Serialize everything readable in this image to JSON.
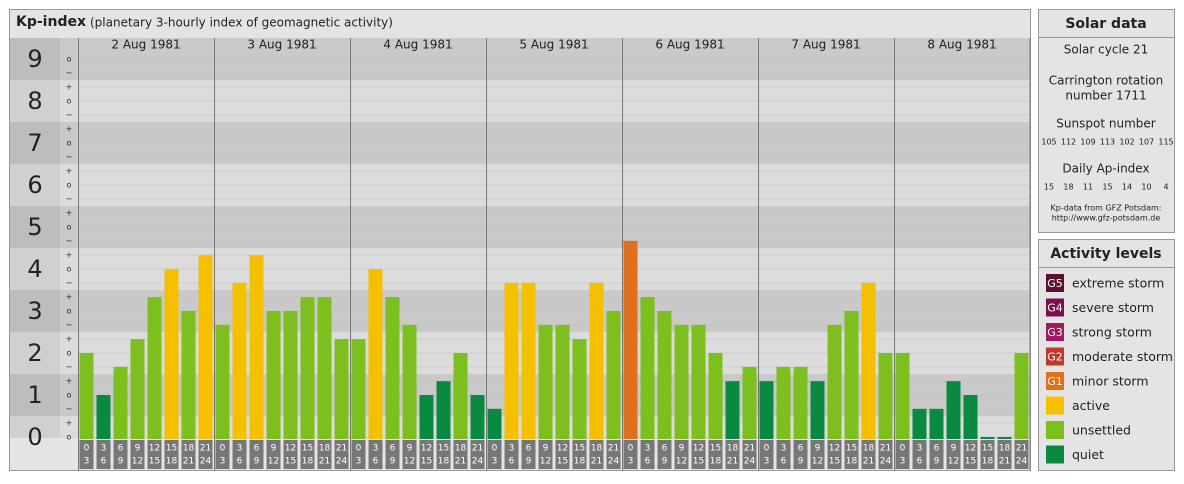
{
  "chart_data": {
    "type": "bar",
    "title": "Kp-index",
    "subtitle": "(planetary 3-hourly index of geomagnetic activity)",
    "ylim": [
      0,
      9.5
    ],
    "yticks": [
      0,
      1,
      2,
      3,
      4,
      5,
      6,
      7,
      8,
      9
    ],
    "sublevels": [
      "o",
      "+",
      "−"
    ],
    "hour_labels": [
      [
        "0",
        "3"
      ],
      [
        "3",
        "6"
      ],
      [
        "6",
        "9"
      ],
      [
        "9",
        "12"
      ],
      [
        "12",
        "15"
      ],
      [
        "15",
        "18"
      ],
      [
        "18",
        "21"
      ],
      [
        "21",
        "24"
      ]
    ],
    "days": [
      {
        "date": "2 Aug 1981",
        "values": [
          2,
          1,
          1.67,
          2.33,
          3.33,
          4,
          3,
          4.33
        ],
        "colors": [
          "#7cbf1e",
          "#0a8a40",
          "#7cbf1e",
          "#7cbf1e",
          "#7cbf1e",
          "#f5c000",
          "#7cbf1e",
          "#f5c000"
        ]
      },
      {
        "date": "3 Aug 1981",
        "values": [
          2.67,
          3.67,
          4.33,
          3,
          3,
          3.33,
          3.33,
          2.33
        ],
        "colors": [
          "#7cbf1e",
          "#f5c000",
          "#f5c000",
          "#7cbf1e",
          "#7cbf1e",
          "#7cbf1e",
          "#7cbf1e",
          "#7cbf1e"
        ]
      },
      {
        "date": "4 Aug 1981",
        "values": [
          2.33,
          4,
          3.33,
          2.67,
          1,
          1.33,
          2,
          1
        ],
        "colors": [
          "#7cbf1e",
          "#f5c000",
          "#7cbf1e",
          "#7cbf1e",
          "#0a8a40",
          "#0a8a40",
          "#7cbf1e",
          "#0a8a40"
        ]
      },
      {
        "date": "5 Aug 1981",
        "values": [
          0.67,
          3.67,
          3.67,
          2.67,
          2.67,
          2.33,
          3.67,
          3
        ],
        "colors": [
          "#0a8a40",
          "#f5c000",
          "#f5c000",
          "#7cbf1e",
          "#7cbf1e",
          "#7cbf1e",
          "#f5c000",
          "#7cbf1e"
        ]
      },
      {
        "date": "6 Aug 1981",
        "values": [
          4.67,
          3.33,
          3,
          2.67,
          2.67,
          2,
          1.33,
          1.67
        ],
        "colors": [
          "#e07020",
          "#7cbf1e",
          "#7cbf1e",
          "#7cbf1e",
          "#7cbf1e",
          "#7cbf1e",
          "#0a8a40",
          "#7cbf1e"
        ]
      },
      {
        "date": "7 Aug 1981",
        "values": [
          1.33,
          1.67,
          1.67,
          1.33,
          2.67,
          3,
          3.67,
          2
        ],
        "colors": [
          "#0a8a40",
          "#7cbf1e",
          "#7cbf1e",
          "#0a8a40",
          "#7cbf1e",
          "#7cbf1e",
          "#f5c000",
          "#7cbf1e"
        ]
      },
      {
        "date": "8 Aug 1981",
        "values": [
          2,
          0.67,
          0.67,
          1.33,
          1,
          0,
          0,
          2
        ],
        "colors": [
          "#7cbf1e",
          "#0a8a40",
          "#0a8a40",
          "#0a8a40",
          "#0a8a40",
          "#0a8a40",
          "#0a8a40",
          "#7cbf1e"
        ]
      }
    ]
  },
  "solar": {
    "title": "Solar data",
    "cycle": "Solar cycle 21",
    "carrington": [
      "Carrington rotation",
      "number 1711"
    ],
    "sunspot_title": "Sunspot number",
    "sunspot": [
      105,
      112,
      109,
      113,
      102,
      107,
      115
    ],
    "ap_title": "Daily Ap-index",
    "ap": [
      15,
      18,
      11,
      15,
      14,
      10,
      4
    ],
    "source": [
      "Kp-data from GFZ Potsdam:",
      "http://www.gfz-potsdam.de"
    ]
  },
  "legend": {
    "title": "Activity levels",
    "items": [
      {
        "code": "G5",
        "label": "extreme storm",
        "color": "#5a1030"
      },
      {
        "code": "G4",
        "label": "severe storm",
        "color": "#7a1050"
      },
      {
        "code": "G3",
        "label": "strong storm",
        "color": "#a01a60"
      },
      {
        "code": "G2",
        "label": "moderate storm",
        "color": "#c0392b"
      },
      {
        "code": "G1",
        "label": "minor storm",
        "color": "#e07020"
      },
      {
        "label": "active",
        "color": "#f5c000"
      },
      {
        "label": "unsettled",
        "color": "#7cbf1e"
      },
      {
        "label": "quiet",
        "color": "#0a8a40"
      }
    ]
  }
}
